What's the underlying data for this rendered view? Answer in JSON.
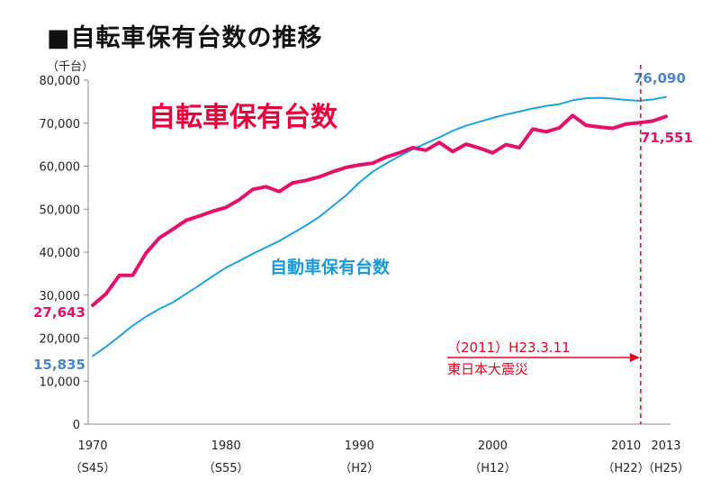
{
  "page": {
    "title": "■自転車保有台数の推移"
  },
  "chart_data": {
    "type": "line",
    "ylabel": "（千台）",
    "ylim": [
      0,
      80000
    ],
    "yticks": [
      0,
      10000,
      20000,
      30000,
      40000,
      50000,
      60000,
      70000,
      80000
    ],
    "ytick_labels": [
      "0",
      "10,000",
      "20,000",
      "30,000",
      "40,000",
      "50,000",
      "60,000",
      "70,000",
      "80,000"
    ],
    "xlim": [
      1970,
      2013
    ],
    "xticks": [
      {
        "year": 1970,
        "label": "1970",
        "era": "（S45）"
      },
      {
        "year": 1980,
        "label": "1980",
        "era": "（S55）"
      },
      {
        "year": 1990,
        "label": "1990",
        "era": "（H2）"
      },
      {
        "year": 2000,
        "label": "2000",
        "era": "（H12）"
      },
      {
        "year": 2010,
        "label": "2010",
        "era": "（H22）"
      },
      {
        "year": 2013,
        "label": "2013",
        "era": "（H25）"
      }
    ],
    "series": [
      {
        "name": "自転車保有台数",
        "color": "#e5106b",
        "x": [
          1970,
          1971,
          1972,
          1973,
          1974,
          1975,
          1976,
          1977,
          1978,
          1979,
          1980,
          1981,
          1982,
          1983,
          1984,
          1985,
          1986,
          1987,
          1988,
          1989,
          1990,
          1991,
          1992,
          1993,
          1994,
          1995,
          1996,
          1997,
          1998,
          1999,
          2000,
          2001,
          2002,
          2003,
          2004,
          2005,
          2006,
          2007,
          2008,
          2009,
          2010,
          2011,
          2012,
          2013
        ],
        "values": [
          27643,
          30300,
          34600,
          34600,
          39800,
          43300,
          45300,
          47400,
          48400,
          49500,
          50400,
          52200,
          54600,
          55200,
          54100,
          56100,
          56700,
          57500,
          58700,
          59700,
          60300,
          60700,
          62100,
          63100,
          64300,
          63700,
          65500,
          63400,
          65100,
          64200,
          63100,
          65000,
          64300,
          68600,
          68000,
          68900,
          71800,
          69500,
          69100,
          68800,
          69800,
          70100,
          70500,
          71551
        ]
      },
      {
        "name": "自動車保有台数",
        "color": "#1aa3e0",
        "x": [
          1970,
          1971,
          1972,
          1973,
          1974,
          1975,
          1976,
          1977,
          1978,
          1979,
          1980,
          1981,
          1982,
          1983,
          1984,
          1985,
          1986,
          1987,
          1988,
          1989,
          1990,
          1991,
          1992,
          1993,
          1994,
          1995,
          1996,
          1997,
          1998,
          1999,
          2000,
          2001,
          2002,
          2003,
          2004,
          2005,
          2006,
          2007,
          2008,
          2009,
          2010,
          2011,
          2012,
          2013
        ],
        "values": [
          15835,
          18000,
          20400,
          22900,
          25000,
          26800,
          28300,
          30300,
          32300,
          34400,
          36400,
          38000,
          39600,
          41100,
          42600,
          44400,
          46200,
          48200,
          50700,
          53200,
          56200,
          58700,
          60600,
          62300,
          63900,
          65300,
          66700,
          68200,
          69400,
          70300,
          71200,
          72000,
          72700,
          73400,
          74000,
          74400,
          75300,
          75800,
          75900,
          75700,
          75400,
          75200,
          75500,
          76090
        ]
      }
    ],
    "annotations": {
      "series_label_bicycle": "自転車保有台数",
      "series_label_car": "自動車保有台数",
      "start_bicycle": "27,643",
      "start_car": "15,835",
      "end_bicycle": "71,551",
      "end_car": "76,090",
      "event_date": "（2011）H23.3.11",
      "event_name": "東日本大震災",
      "event_year": 2011.1
    }
  }
}
